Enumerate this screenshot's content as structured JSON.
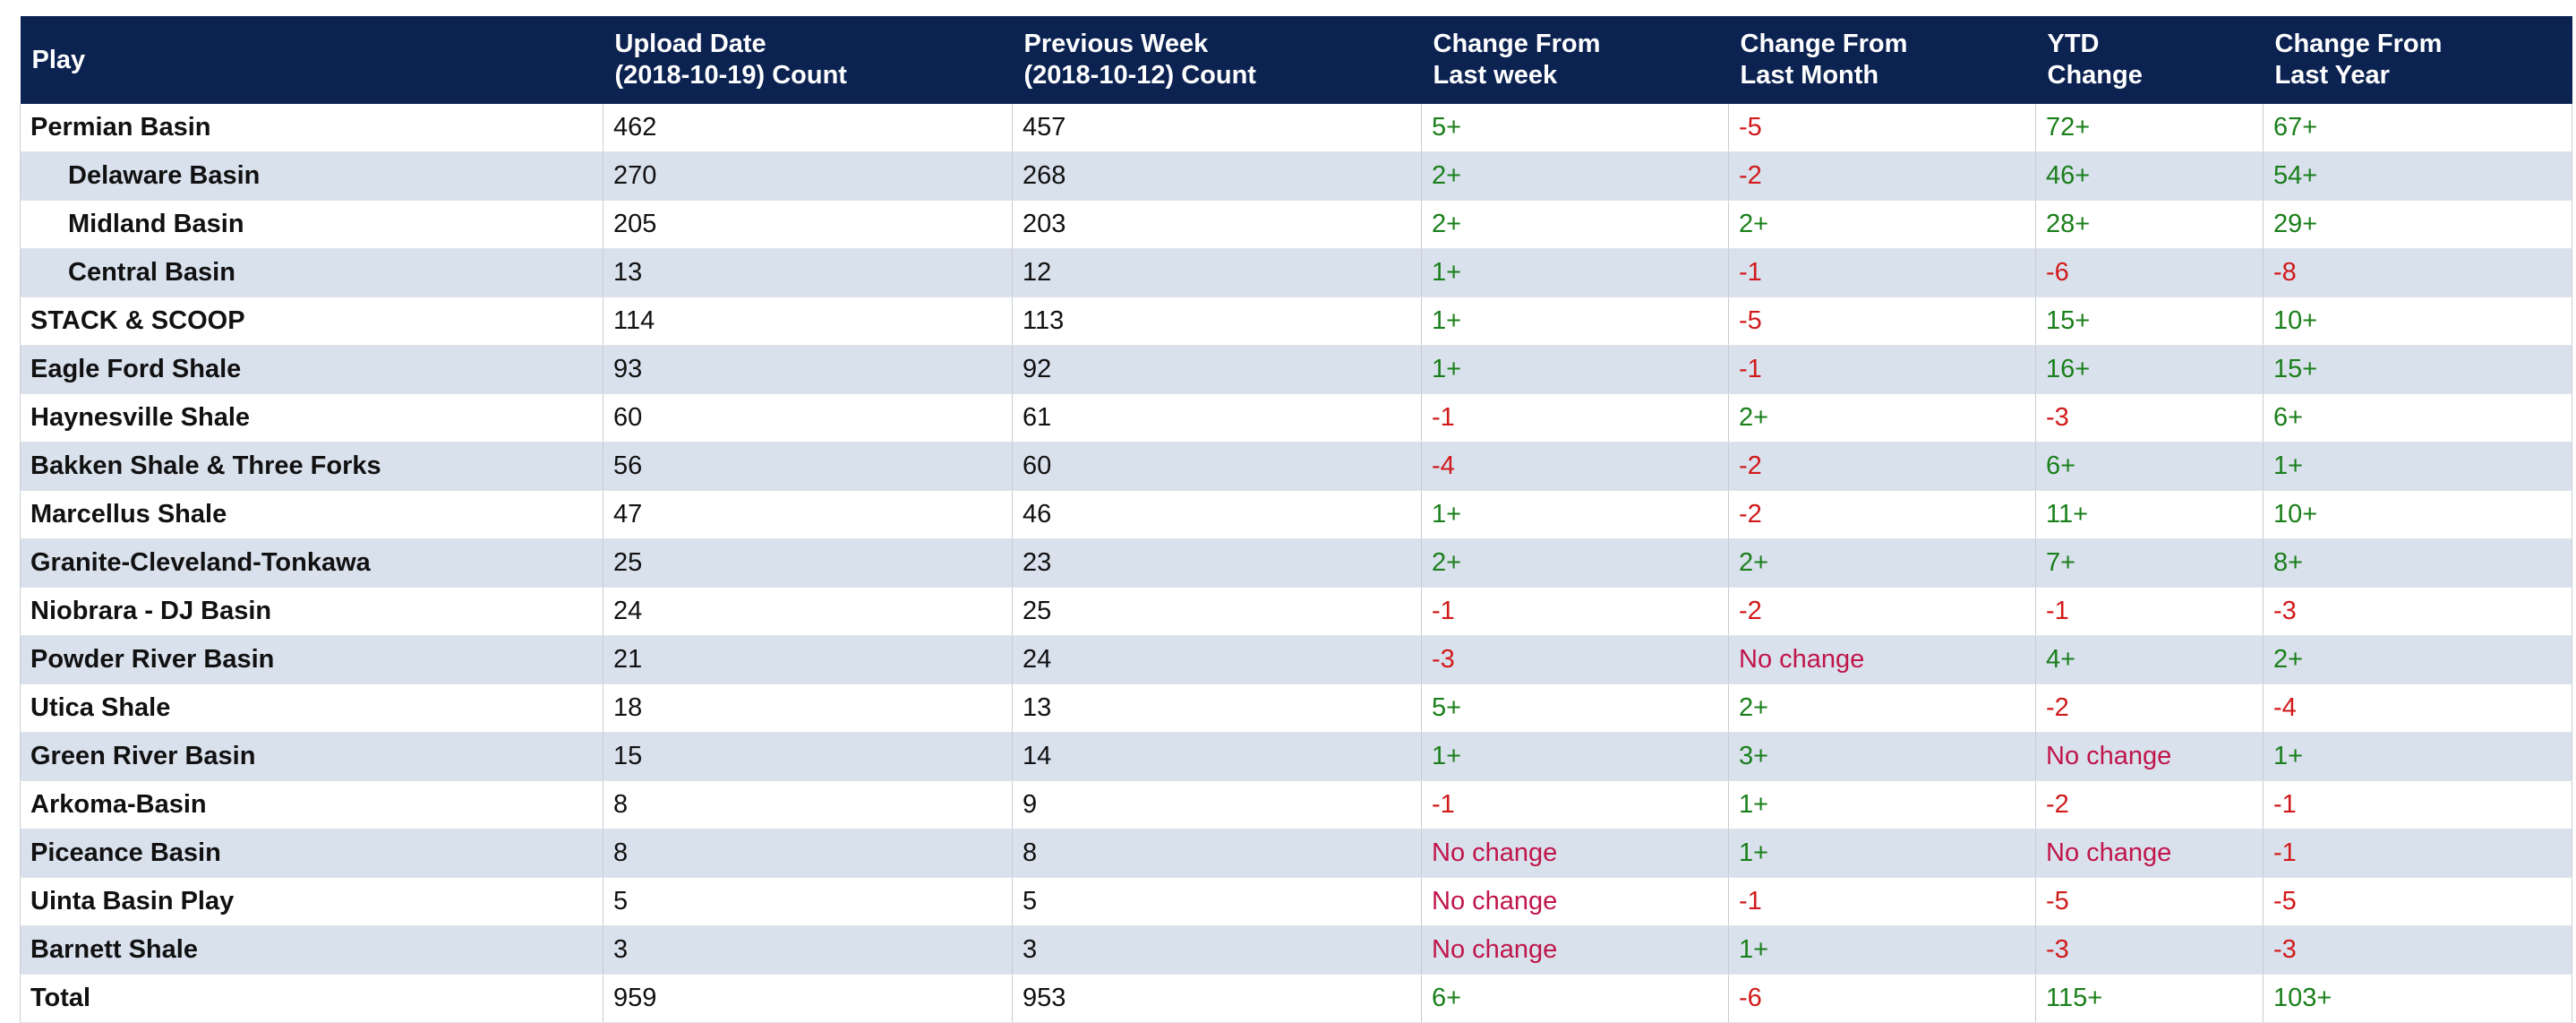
{
  "table": {
    "header": [
      "Play",
      "Upload Date\n(2018-10-19) Count",
      "Previous Week\n(2018-10-12) Count",
      "Change From\nLast week",
      "Change From\nLast Month",
      "YTD\nChange",
      "Change From\nLast Year"
    ],
    "rows": [
      {
        "cells": [
          "Permian Basin",
          462,
          457,
          "5+",
          "-5",
          "72+",
          "67+"
        ]
      },
      {
        "cells": [
          "Delaware Basin",
          270,
          268,
          "2+",
          "-2",
          "46+",
          "54+"
        ],
        "indent": true
      },
      {
        "cells": [
          "Midland Basin",
          205,
          203,
          "2+",
          "2+",
          "28+",
          "29+"
        ],
        "indent": true
      },
      {
        "cells": [
          "Central Basin",
          13,
          12,
          "1+",
          "-1",
          "-6",
          "-8"
        ],
        "indent": true
      },
      {
        "cells": [
          "STACK & SCOOP",
          114,
          113,
          "1+",
          "-5",
          "15+",
          "10+"
        ]
      },
      {
        "cells": [
          "Eagle Ford Shale",
          93,
          92,
          "1+",
          "-1",
          "16+",
          "15+"
        ]
      },
      {
        "cells": [
          "Haynesville Shale",
          60,
          61,
          "-1",
          "2+",
          "-3",
          "6+"
        ]
      },
      {
        "cells": [
          "Bakken Shale & Three Forks",
          56,
          60,
          "-4",
          "-2",
          "6+",
          "1+"
        ]
      },
      {
        "cells": [
          "Marcellus Shale",
          47,
          46,
          "1+",
          "-2",
          "11+",
          "10+"
        ]
      },
      {
        "cells": [
          "Granite-Cleveland-Tonkawa",
          25,
          23,
          "2+",
          "2+",
          "7+",
          "8+"
        ]
      },
      {
        "cells": [
          "Niobrara - DJ Basin",
          24,
          25,
          "-1",
          "-2",
          "-1",
          "-3"
        ]
      },
      {
        "cells": [
          "Powder River Basin",
          21,
          24,
          "-3",
          "No change",
          "4+",
          "2+"
        ]
      },
      {
        "cells": [
          "Utica Shale",
          18,
          13,
          "5+",
          "2+",
          "-2",
          "-4"
        ]
      },
      {
        "cells": [
          "Green River Basin",
          15,
          14,
          "1+",
          "3+",
          "No change",
          "1+"
        ]
      },
      {
        "cells": [
          "Arkoma-Basin",
          8,
          9,
          "-1",
          "1+",
          "-2",
          "-1"
        ]
      },
      {
        "cells": [
          "Piceance Basin",
          8,
          8,
          "No change",
          "1+",
          "No change",
          "-1"
        ]
      },
      {
        "cells": [
          "Uinta Basin Play",
          5,
          5,
          "No change",
          "-1",
          "-5",
          "-5"
        ]
      },
      {
        "cells": [
          "Barnett Shale",
          3,
          3,
          "No change",
          "1+",
          "-3",
          "-3"
        ]
      },
      {
        "cells": [
          "Total",
          959,
          953,
          "6+",
          "-6",
          "115+",
          "103+"
        ]
      }
    ]
  }
}
